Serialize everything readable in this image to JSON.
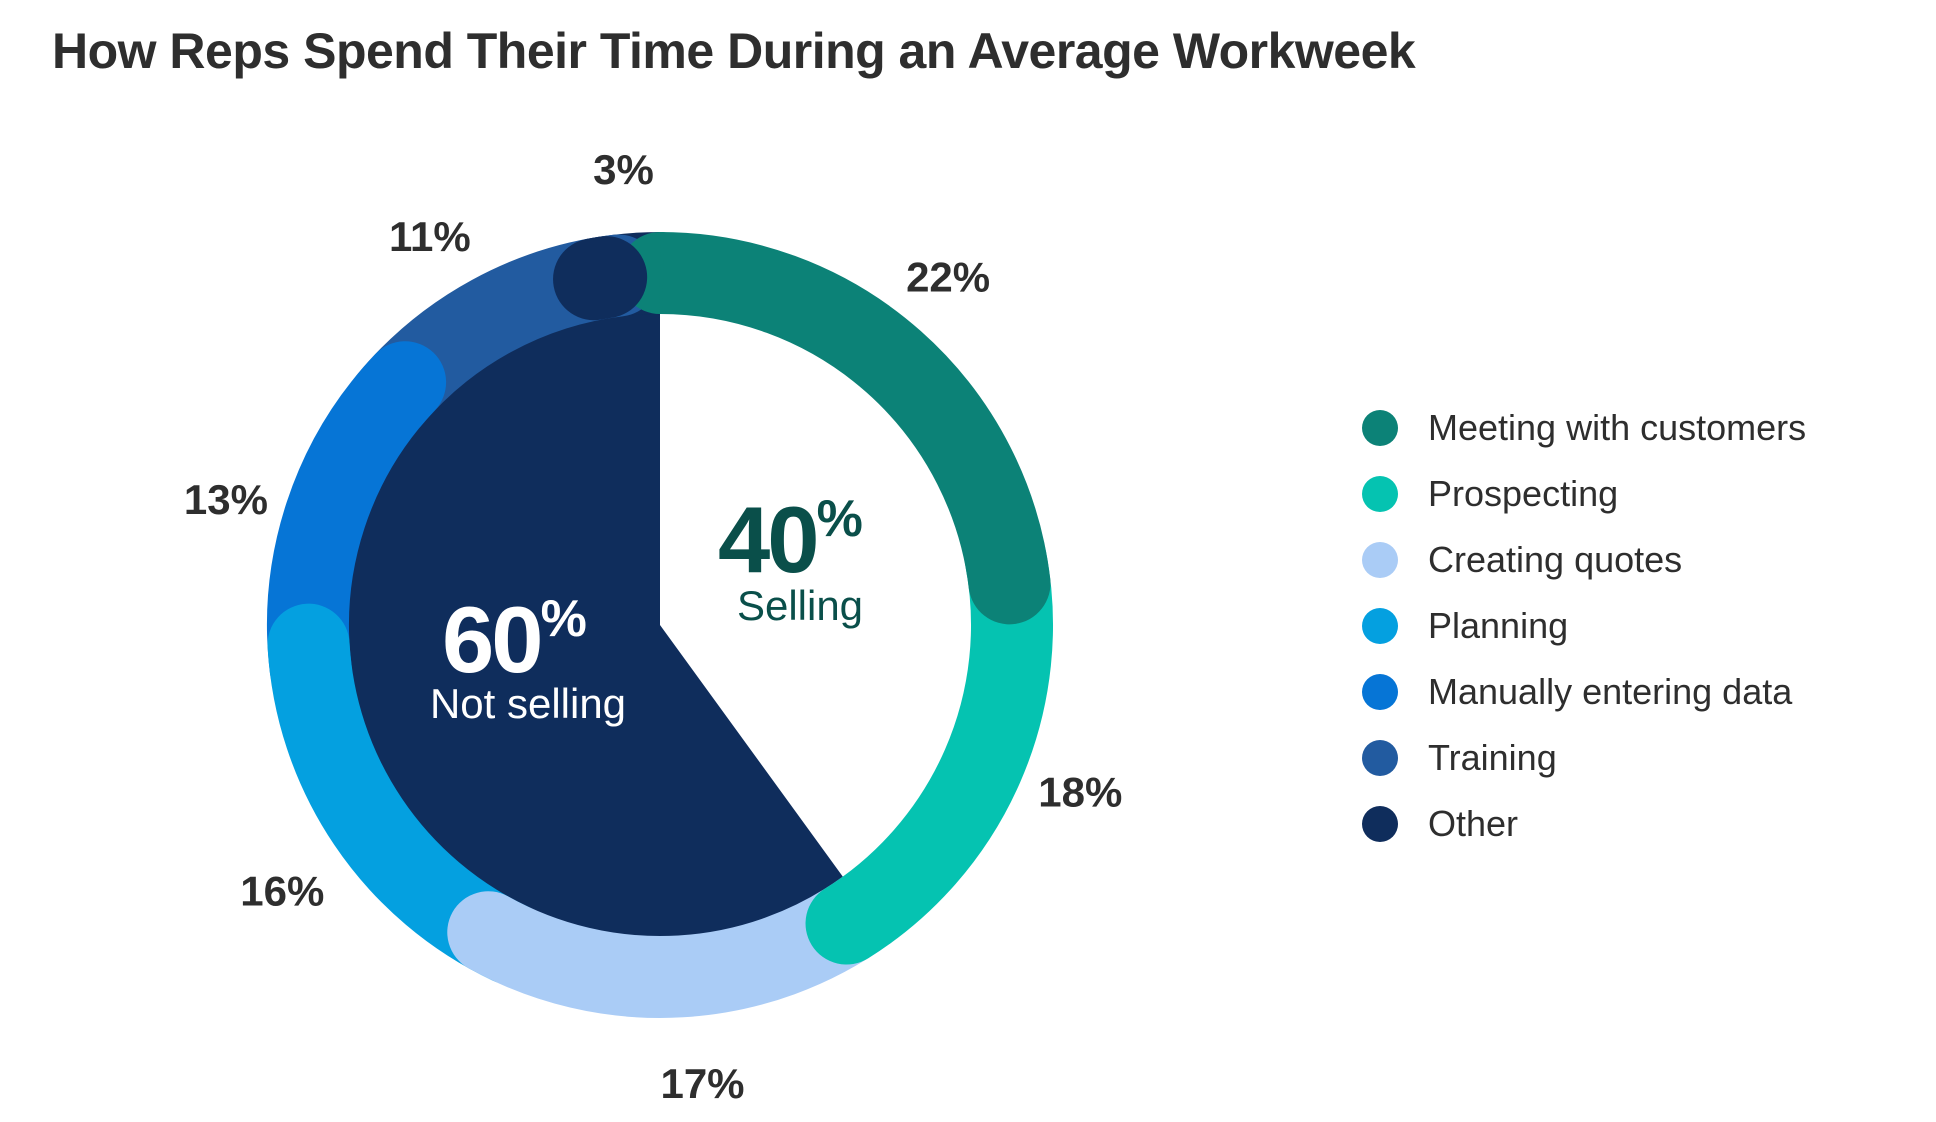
{
  "title": "How Reps Spend Their Time During an Average Workweek",
  "chart_data": {
    "type": "pie",
    "title": "How Reps Spend Their Time During an Average Workweek",
    "series": [
      {
        "name": "Meeting with customers",
        "value": 22,
        "label": "22%",
        "color": "#0c8277"
      },
      {
        "name": "Prospecting",
        "value": 18,
        "label": "18%",
        "color": "#05c3b1"
      },
      {
        "name": "Creating quotes",
        "value": 17,
        "label": "17%",
        "color": "#aaccf6"
      },
      {
        "name": "Planning",
        "value": 16,
        "label": "16%",
        "color": "#04a0e0"
      },
      {
        "name": "Manually entering data",
        "value": 13,
        "label": "13%",
        "color": "#0675d6"
      },
      {
        "name": "Training",
        "value": 11,
        "label": "11%",
        "color": "#225ba0"
      },
      {
        "name": "Other",
        "value": 3,
        "label": "3%",
        "color": "#0f2d5c"
      }
    ],
    "groups": [
      {
        "value": "40",
        "suffix": "%",
        "label": "Selling",
        "color": "#0a4f4a"
      },
      {
        "value": "60",
        "suffix": "%",
        "label": "Not selling",
        "color": "#ffffff",
        "fill": "#0f2d5c"
      }
    ],
    "legend_position": "right"
  }
}
